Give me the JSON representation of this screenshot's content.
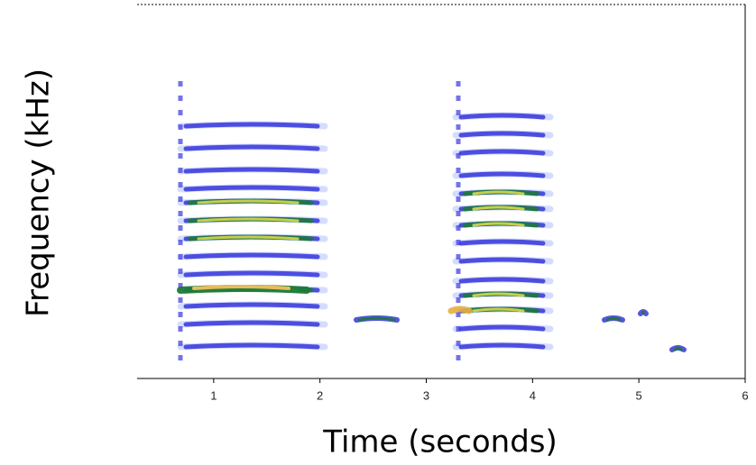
{
  "chart_data": {
    "type": "spectrogram",
    "xlabel": "Time (seconds)",
    "ylabel": "Frequency (kHz)",
    "xlim": [
      0.28,
      6
    ],
    "xticks": [
      1,
      2,
      3,
      4,
      5,
      6
    ]
  }
}
